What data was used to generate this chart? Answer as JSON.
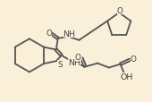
{
  "background_color": "#faefd9",
  "line_color": "#555555",
  "line_width": 1.3,
  "text_color": "#444444",
  "font_size": 6.8,
  "atoms": {
    "S_label": "S",
    "O1_label": "O",
    "NH1_label": "NH",
    "O2_label": "O",
    "NH2_label": "NH",
    "O3_label": "O",
    "O4_label": "O",
    "OH_label": "OH"
  }
}
